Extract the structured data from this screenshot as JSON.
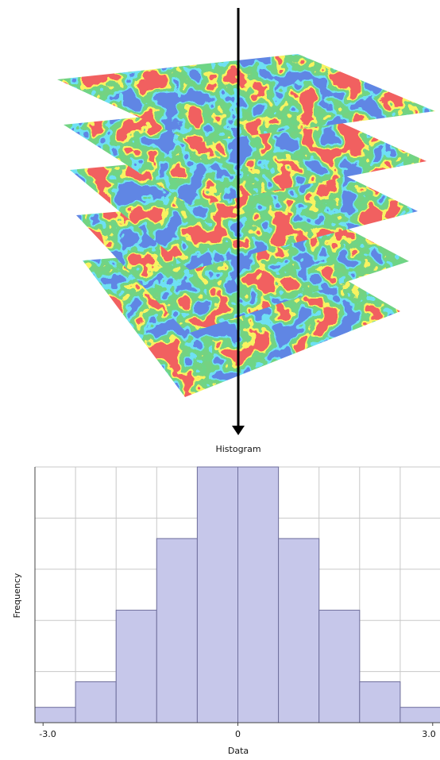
{
  "chart_data": {
    "type": "histogram",
    "title": "Histogram",
    "x_label": "Data",
    "y_label": "Frequency",
    "bins": [
      -3.125,
      -2.5,
      -1.875,
      -1.25,
      -0.625,
      0,
      0.625,
      1.25,
      1.875,
      2.5,
      3.125
    ],
    "values": [
      0.6,
      1.6,
      4.4,
      7.2,
      10,
      10,
      7.2,
      4.4,
      1.6,
      0.6
    ],
    "color": "#c6c7ea",
    "xlim": [
      -3.125,
      3.125
    ],
    "xticks": [
      {
        "value": -3,
        "label": "-3.0"
      },
      0,
      {
        "value": 3,
        "label": "3.0"
      }
    ],
    "ylim": [
      0,
      10
    ],
    "yticks": [
      0,
      2,
      4,
      6,
      8,
      10
    ],
    "grid": true
  }
}
